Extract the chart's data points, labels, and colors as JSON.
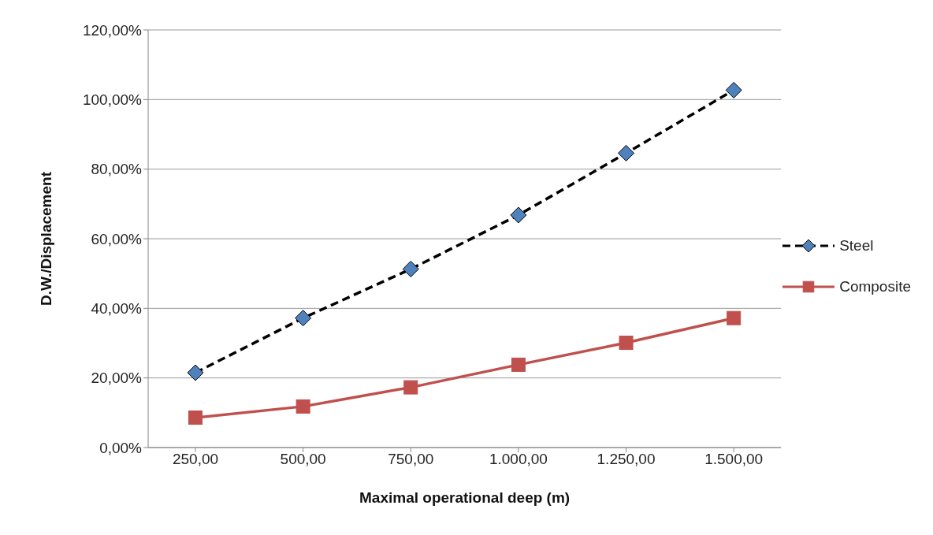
{
  "chart_data": {
    "type": "line",
    "xlabel": "Maximal operational deep (m)",
    "ylabel": "D.W./Displacement",
    "categories": [
      "250,00",
      "500,00",
      "750,00",
      "1.000,00",
      "1.250,00",
      "1.500,00"
    ],
    "series": [
      {
        "name": "Steel",
        "color": "#000000",
        "marker": "diamond",
        "colors": [
          "#4f81bd",
          "#4f81bd",
          "#4f81bd",
          "#4f81bd",
          "#4f81bd",
          "#4f81bd"
        ],
        "line_style": "dashed",
        "values": [
          21.5,
          37.2,
          51.3,
          66.8,
          84.6,
          102.7
        ]
      },
      {
        "name": "Composite",
        "color": "#c0504d",
        "marker": "square",
        "line_style": "solid",
        "values": [
          8.6,
          11.8,
          17.3,
          23.8,
          30.1,
          37.2
        ]
      }
    ],
    "ylim": [
      0,
      120
    ],
    "yticks": [
      {
        "value": 0,
        "label": "0,00%"
      },
      {
        "value": 20,
        "label": "20,00%"
      },
      {
        "value": 40,
        "label": "40,00%"
      },
      {
        "value": 60,
        "label": "60,00%"
      },
      {
        "value": 80,
        "label": "80,00%"
      },
      {
        "value": 100,
        "label": "100,00%"
      },
      {
        "value": 120,
        "label": "120,00%"
      }
    ],
    "grid": "y",
    "legend": "right"
  }
}
